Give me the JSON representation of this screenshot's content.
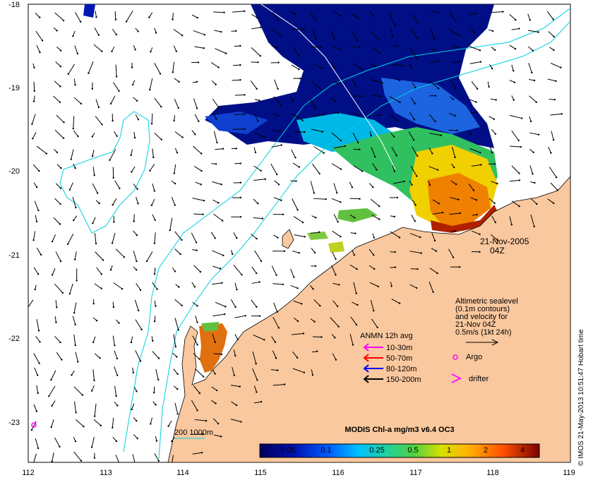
{
  "map": {
    "lon_ticks": [
      "112",
      "113",
      "114",
      "115",
      "116",
      "117",
      "118",
      "119"
    ],
    "lat_ticks": [
      "-18",
      "-19",
      "-20",
      "-21",
      "-22",
      "-23"
    ],
    "date_line1": "21-Nov-2005",
    "date_line2": "04Z",
    "altimetry_lines": [
      "Altimetric sealevel",
      "(0.1m contours)",
      "and velocity for",
      "21-Nov 04Z",
      "0.5m/s (1kt 24h)"
    ],
    "argo_label": "Argo",
    "drifter_label": "drifter",
    "anmn_title": "ANMN 12h avg",
    "anmn_items": [
      {
        "label": "10-30m",
        "color": "#ff00ff"
      },
      {
        "label": "50-70m",
        "color": "#ff0000"
      },
      {
        "label": "80-120m",
        "color": "#0000ff"
      },
      {
        "label": "150-200m",
        "color": "#000000"
      }
    ],
    "depth_label": "200  1000m",
    "colorbar_title": "MODIS Chl-a mg/m3 v6.4 OC3",
    "colorbar_ticks": [
      "0.05",
      "0.1",
      "0.25",
      "0.5",
      "1",
      "2",
      "4"
    ],
    "credit": "© IMOS 21-May-2013 10:51:47 Hobart time",
    "colors": {
      "land": "#fac89e",
      "contour": "#00d0e0",
      "argo": "#ff00ff"
    }
  }
}
